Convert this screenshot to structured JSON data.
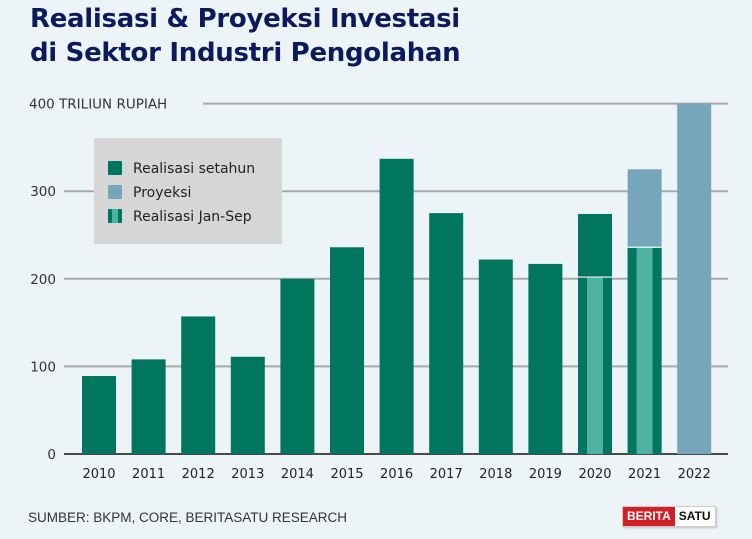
{
  "title_line1": "Realisasi & Proyeksi Investasi",
  "title_line2": "di Sektor Industri Pengolahan",
  "source": "SUMBER: BKPM, CORE, BERITASATU RESEARCH",
  "logo": {
    "part1": "BERITA",
    "part2": "SATU"
  },
  "colors": {
    "realisasi": "#00765f",
    "proyeksi": "#76a6bb",
    "jansep": "#4fb1a0",
    "title": "#0b1a5c",
    "grid": "#a9a9a9",
    "legend_bg": "#d6d6d6"
  },
  "chart_data": {
    "type": "bar",
    "title": "Realisasi & Proyeksi Investasi di Sektor Industri Pengolahan",
    "ylabel": "TRILIUN RUPIAH",
    "ylim": [
      0,
      400
    ],
    "yticks": [
      0,
      100,
      200,
      300,
      400
    ],
    "ytick_labels": [
      "0",
      "100",
      "200",
      "300",
      "400 TRILIUN RUPIAH"
    ],
    "grid": true,
    "legend_position": "top-left",
    "categories": [
      "2010",
      "2011",
      "2012",
      "2013",
      "2014",
      "2015",
      "2016",
      "2017",
      "2018",
      "2019",
      "2020",
      "2021",
      "2022"
    ],
    "series": [
      {
        "name": "Realisasi setahun",
        "values": [
          89,
          108,
          157,
          111,
          200,
          236,
          337,
          275,
          222,
          217,
          274,
          null,
          null
        ]
      },
      {
        "name": "Proyeksi",
        "values": [
          null,
          null,
          null,
          null,
          null,
          null,
          null,
          null,
          null,
          null,
          null,
          325,
          400
        ]
      },
      {
        "name": "Realisasi Jan-Sep",
        "values": [
          null,
          null,
          null,
          null,
          null,
          null,
          null,
          null,
          null,
          null,
          202,
          236,
          null
        ]
      }
    ],
    "legend": [
      "Realisasi setahun",
      "Proyeksi",
      "Realisasi Jan-Sep"
    ]
  }
}
